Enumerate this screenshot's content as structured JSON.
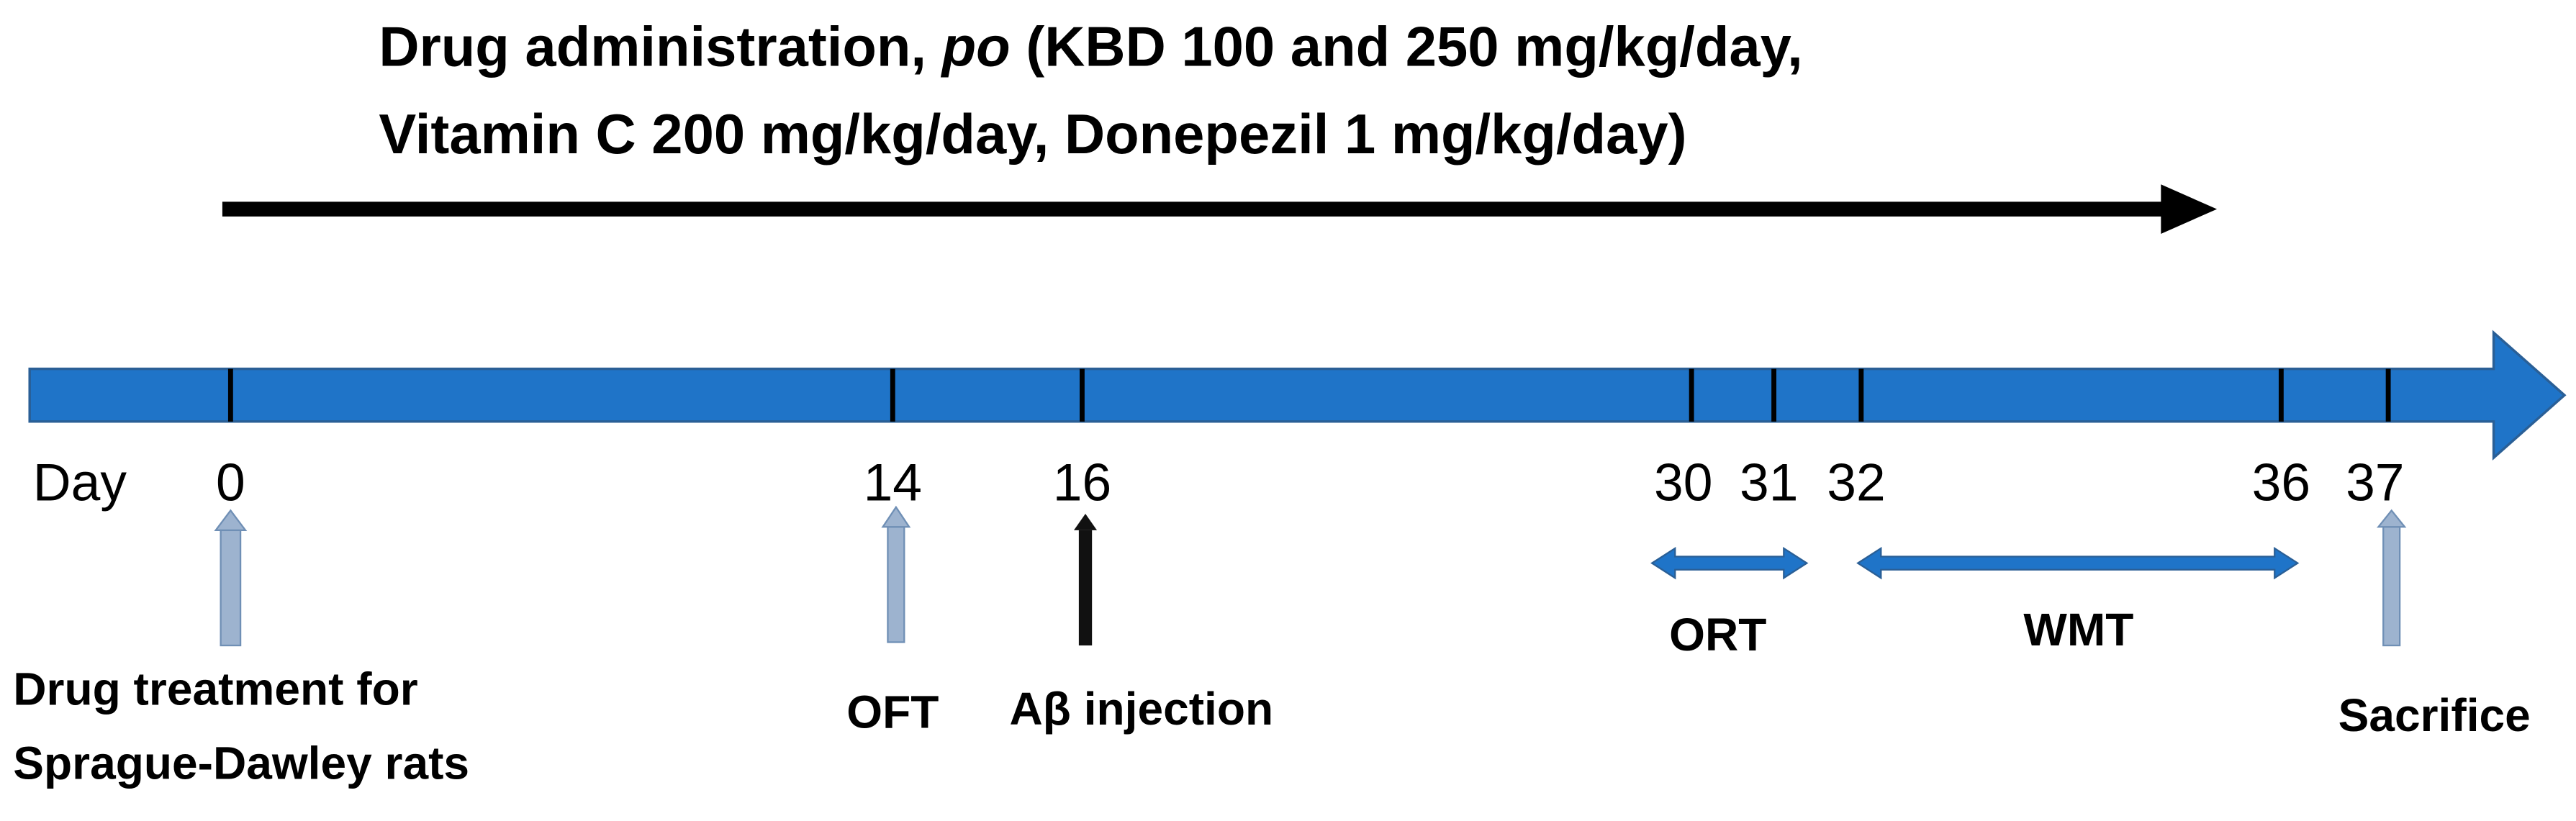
{
  "header": {
    "line1": [
      "Drug administration, ",
      "po",
      " (KBD 100 and 250 mg/kg/day,"
    ],
    "line2": "Vitamin C 200 mg/kg/day, Donepezil 1 mg/kg/day)"
  },
  "timeline": {
    "axis_label": "Day",
    "ticks": [
      "0",
      "14",
      "16",
      "30",
      "31",
      "32",
      "36",
      "37"
    ]
  },
  "events": [
    {
      "lines": [
        "Drug treatment for",
        "Sprague-Dawley rats"
      ]
    },
    {
      "lines": [
        "OFT"
      ]
    },
    {
      "lines": [
        "Aβ injection"
      ]
    },
    {
      "lines": [
        "Sacrifice"
      ]
    }
  ],
  "periods": [
    {
      "label": "ORT"
    },
    {
      "label": "WMT"
    }
  ]
}
